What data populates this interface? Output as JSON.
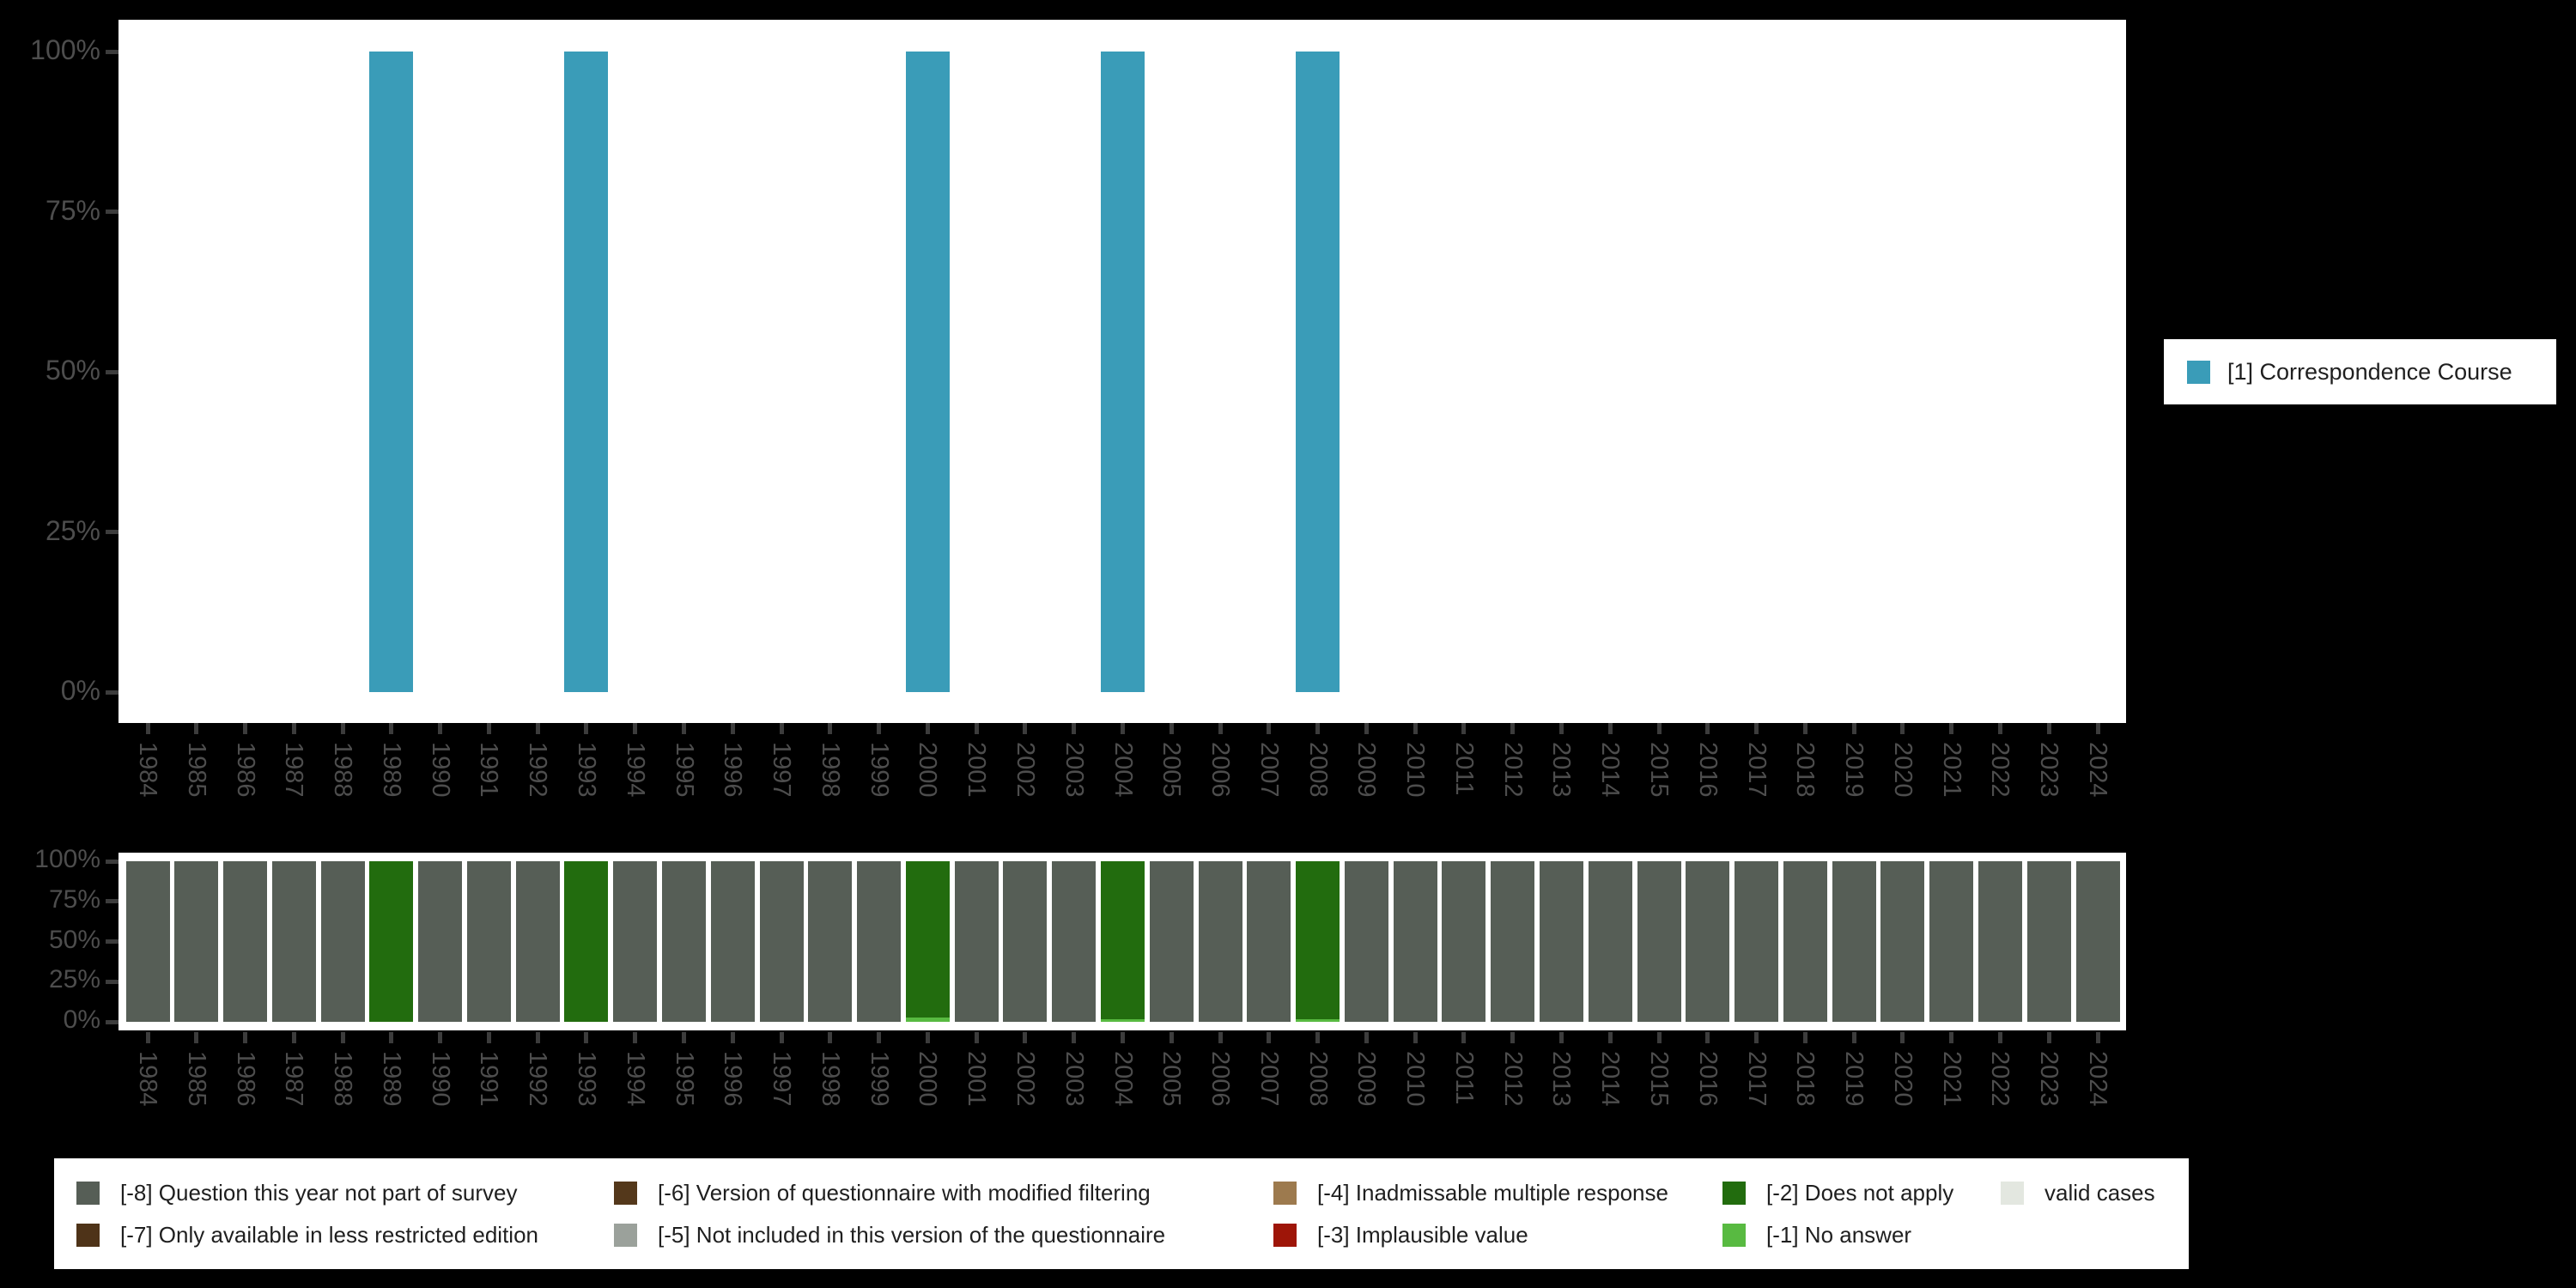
{
  "colors": {
    "background": "#000000",
    "panel": "#ffffff",
    "axis_text": "#4d4d4d",
    "tick": "#3c3c3c",
    "legend_text": "#1f1f1f",
    "teal": "#3a9cb8",
    "gray_bar": "#565e56",
    "dark_green": "#226c0e",
    "light_green": "#58ba41"
  },
  "chart_data": [
    {
      "type": "bar",
      "title": "",
      "xlabel": "",
      "ylabel": "",
      "ylim": [
        0,
        100
      ],
      "ytick_labels": [
        "0%",
        "25%",
        "50%",
        "75%",
        "100%"
      ],
      "grid": false,
      "legend_position": "right",
      "categories": [
        1984,
        1985,
        1986,
        1987,
        1988,
        1989,
        1990,
        1991,
        1992,
        1993,
        1994,
        1995,
        1996,
        1997,
        1998,
        1999,
        2000,
        2001,
        2002,
        2003,
        2004,
        2005,
        2006,
        2007,
        2008,
        2009,
        2010,
        2011,
        2012,
        2013,
        2014,
        2015,
        2016,
        2017,
        2018,
        2019,
        2020,
        2021,
        2022,
        2023,
        2024
      ],
      "series": [
        {
          "name": "[1] Correspondence Course",
          "color": "#3a9cb8",
          "values": [
            0,
            0,
            0,
            0,
            0,
            100,
            0,
            0,
            0,
            100,
            0,
            0,
            0,
            0,
            0,
            0,
            100,
            0,
            0,
            0,
            100,
            0,
            0,
            0,
            100,
            0,
            0,
            0,
            0,
            0,
            0,
            0,
            0,
            0,
            0,
            0,
            0,
            0,
            0,
            0,
            0
          ]
        }
      ]
    },
    {
      "type": "stacked_bar",
      "title": "",
      "xlabel": "",
      "ylabel": "",
      "ylim": [
        0,
        100
      ],
      "ytick_labels": [
        "0%",
        "25%",
        "50%",
        "75%",
        "100%"
      ],
      "grid": false,
      "legend_position": "bottom",
      "categories": [
        1984,
        1985,
        1986,
        1987,
        1988,
        1989,
        1990,
        1991,
        1992,
        1993,
        1994,
        1995,
        1996,
        1997,
        1998,
        1999,
        2000,
        2001,
        2002,
        2003,
        2004,
        2005,
        2006,
        2007,
        2008,
        2009,
        2010,
        2011,
        2012,
        2013,
        2014,
        2015,
        2016,
        2017,
        2018,
        2019,
        2020,
        2021,
        2022,
        2023,
        2024
      ],
      "series": [
        {
          "name": "[-1] No answer",
          "color": "#58ba41",
          "values": [
            0,
            0,
            0,
            0,
            0,
            0,
            0,
            0,
            0,
            0,
            0,
            0,
            0,
            0,
            0,
            0,
            2.5,
            0,
            0,
            0,
            1.5,
            0,
            0,
            0,
            1.5,
            0,
            0,
            0,
            0,
            0,
            0,
            0,
            0,
            0,
            0,
            0,
            0,
            0,
            0,
            0,
            0
          ]
        },
        {
          "name": "[-2] Does not apply",
          "color": "#226c0e",
          "values": [
            0,
            0,
            0,
            0,
            0,
            100,
            0,
            0,
            0,
            100,
            0,
            0,
            0,
            0,
            0,
            0,
            97.5,
            0,
            0,
            0,
            98.5,
            0,
            0,
            0,
            98.5,
            0,
            0,
            0,
            0,
            0,
            0,
            0,
            0,
            0,
            0,
            0,
            0,
            0,
            0,
            0,
            0
          ]
        },
        {
          "name": "[-8] Question this year not part of survey",
          "color": "#565e56",
          "values": [
            100,
            100,
            100,
            100,
            100,
            0,
            100,
            100,
            100,
            0,
            100,
            100,
            100,
            100,
            100,
            100,
            0,
            100,
            100,
            100,
            0,
            100,
            100,
            100,
            0,
            100,
            100,
            100,
            100,
            100,
            100,
            100,
            100,
            100,
            100,
            100,
            100,
            100,
            100,
            100,
            100
          ]
        }
      ]
    }
  ],
  "legend_right": {
    "items": [
      {
        "label": "[1] Correspondence Course",
        "color": "#3a9cb8"
      }
    ]
  },
  "legend_bottom": {
    "items": [
      {
        "label": "[-8] Question this year not part of survey",
        "color": "#565e56"
      },
      {
        "label": "[-7] Only available in less restricted edition",
        "color": "#4e3318"
      },
      {
        "label": "[-6] Version of questionnaire with modified filtering",
        "color": "#54381b"
      },
      {
        "label": "[-5] Not included in this version of the questionnaire",
        "color": "#9ba19b"
      },
      {
        "label": "[-4] Inadmissable multiple response",
        "color": "#9d7a4e"
      },
      {
        "label": "[-3] Implausible value",
        "color": "#9e1508"
      },
      {
        "label": "[-2] Does not apply",
        "color": "#226c0e"
      },
      {
        "label": "[-1] No answer",
        "color": "#58ba41"
      },
      {
        "label": "valid cases",
        "color": "#e3e7e0"
      }
    ]
  }
}
